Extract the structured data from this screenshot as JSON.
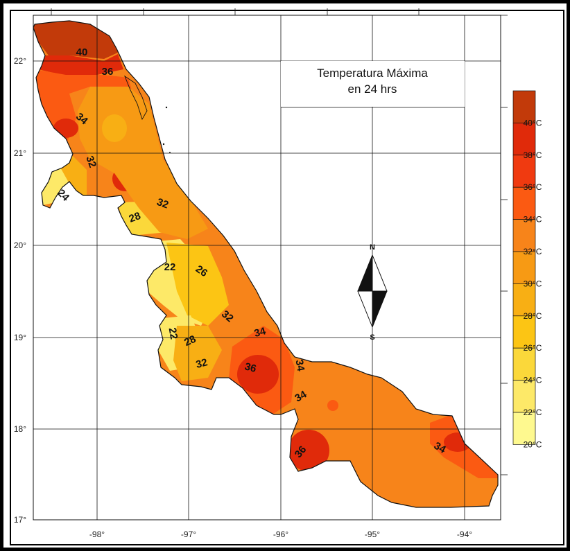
{
  "map": {
    "title_line1": "Temperatura Máxima",
    "title_line2": "en 24 hrs",
    "lat_labels": [
      "22°",
      "21°",
      "20°",
      "19°",
      "18°",
      "17°"
    ],
    "lon_labels": [
      "-98°",
      "-97°",
      "-96°",
      "-95°",
      "-94°"
    ],
    "compass": {
      "north": "N",
      "south": "S"
    },
    "isotherm_labels": [
      "40",
      "36",
      "34",
      "32",
      "24",
      "32",
      "28",
      "22",
      "26",
      "32",
      "22",
      "28",
      "32",
      "34",
      "36",
      "34",
      "34",
      "36",
      "34"
    ],
    "legend": {
      "labels": [
        "40°C",
        "38°C",
        "36°C",
        "34°C",
        "32°C",
        "30°C",
        "28°C",
        "26°C",
        "24°C",
        "22°C",
        "20°C"
      ],
      "colors": [
        "#c23a0a",
        "#e02a0a",
        "#f03a10",
        "#fb5a12",
        "#f7841a",
        "#f79a14",
        "#f8af14",
        "#fcc514",
        "#fbd83a",
        "#fde968",
        "#fef98f"
      ]
    }
  }
}
